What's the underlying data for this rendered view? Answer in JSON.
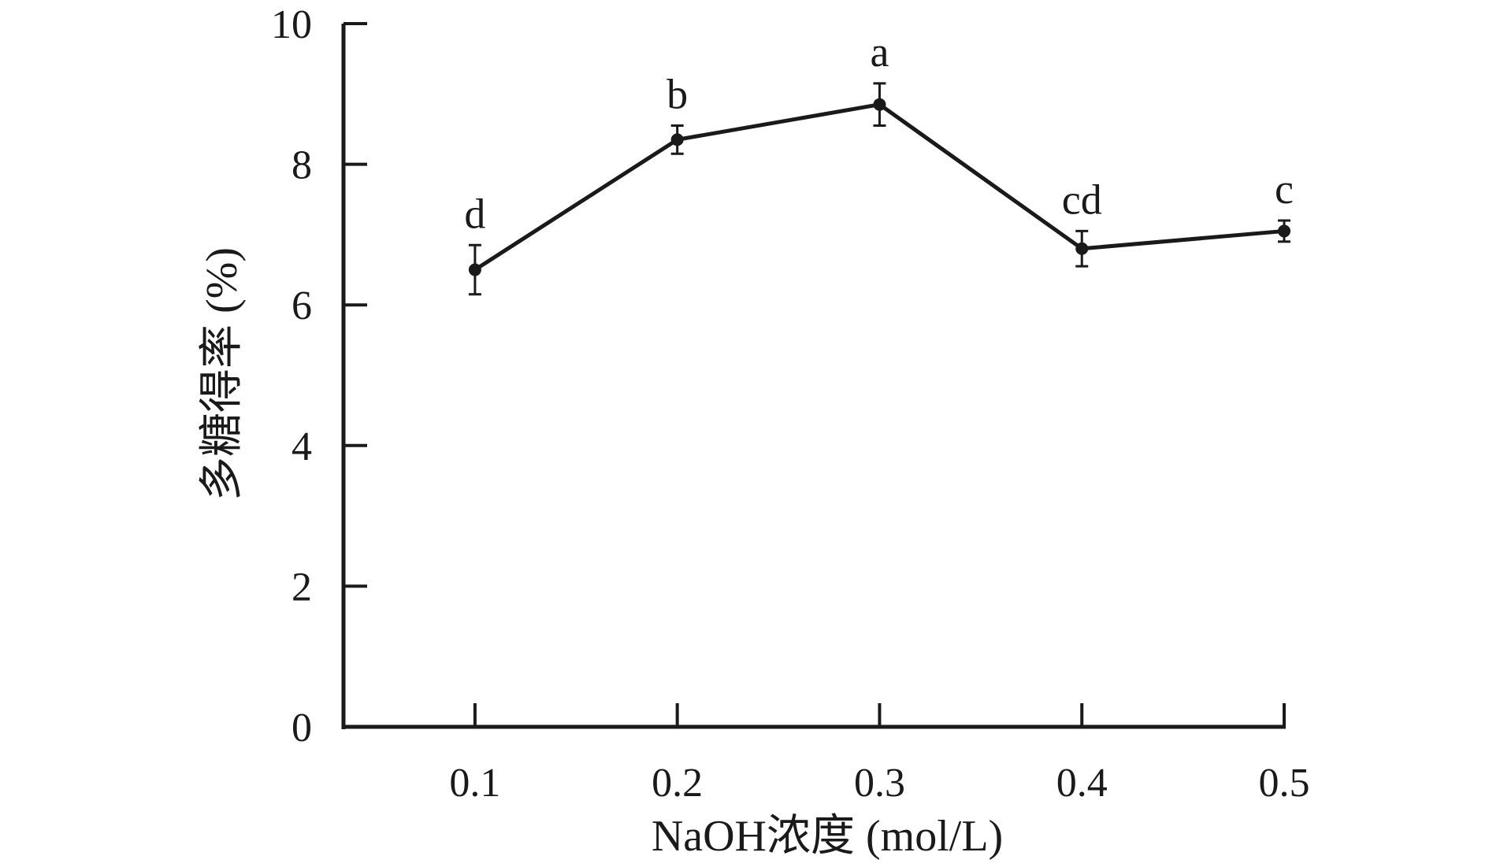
{
  "chart_data": {
    "type": "line",
    "title": "",
    "xlabel": "NaOH浓度 (mol/L)",
    "ylabel": "多糖得率 (%)",
    "x": [
      0.1,
      0.2,
      0.3,
      0.4,
      0.5
    ],
    "x_tick_labels": [
      "0.1",
      "0.2",
      "0.3",
      "0.4",
      "0.5"
    ],
    "xlim": [
      0.035,
      0.5
    ],
    "ylim": [
      0,
      10
    ],
    "y_ticks": [
      0,
      2,
      4,
      6,
      8,
      10
    ],
    "y_tick_labels": [
      "0",
      "2",
      "4",
      "6",
      "8",
      "10"
    ],
    "grid": false,
    "series": [
      {
        "values": [
          6.5,
          8.35,
          8.85,
          6.8,
          7.05
        ],
        "error": [
          0.35,
          0.2,
          0.3,
          0.25,
          0.15
        ],
        "labels": [
          "d",
          "b",
          "a",
          "cd",
          "c"
        ],
        "color": "#1a1a1a"
      }
    ]
  }
}
